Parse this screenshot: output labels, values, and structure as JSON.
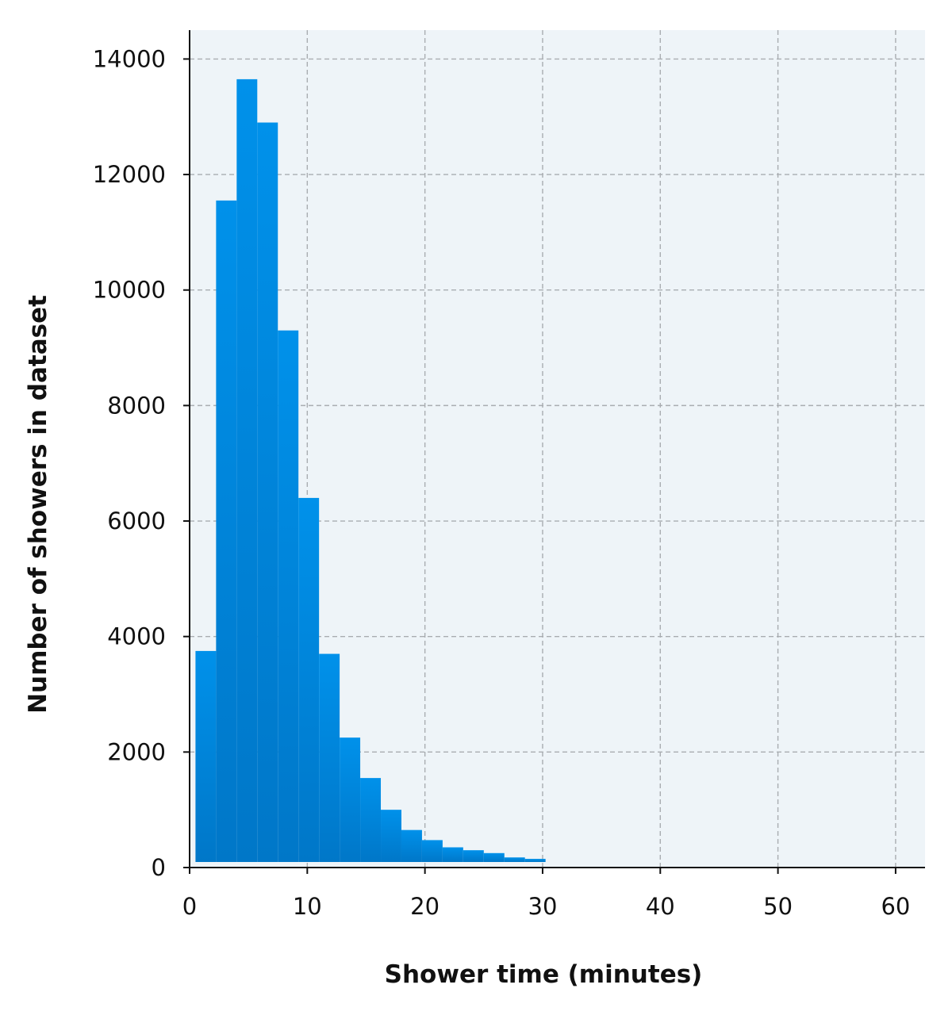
{
  "chart_data": {
    "type": "bar",
    "subtype": "histogram",
    "xlabel": "Shower time (minutes)",
    "ylabel": "Number of showers in dataset",
    "xlim": [
      0,
      62.5
    ],
    "ylim": [
      0,
      14500
    ],
    "xticks": [
      0,
      10,
      20,
      30,
      40,
      50,
      60
    ],
    "yticks": [
      0,
      2000,
      4000,
      6000,
      8000,
      10000,
      12000,
      14000
    ],
    "grid": true,
    "bins": [
      {
        "x0": 0.5,
        "x1": 2.25,
        "value": 3750
      },
      {
        "x0": 2.25,
        "x1": 4.0,
        "value": 11550
      },
      {
        "x0": 4.0,
        "x1": 5.75,
        "value": 13650
      },
      {
        "x0": 5.75,
        "x1": 7.5,
        "value": 12900
      },
      {
        "x0": 7.5,
        "x1": 9.25,
        "value": 9300
      },
      {
        "x0": 9.25,
        "x1": 11.0,
        "value": 6400
      },
      {
        "x0": 11.0,
        "x1": 12.75,
        "value": 3700
      },
      {
        "x0": 12.75,
        "x1": 14.5,
        "value": 2250
      },
      {
        "x0": 14.5,
        "x1": 16.25,
        "value": 1550
      },
      {
        "x0": 16.25,
        "x1": 18.0,
        "value": 1000
      },
      {
        "x0": 18.0,
        "x1": 19.75,
        "value": 650
      },
      {
        "x0": 19.75,
        "x1": 21.5,
        "value": 475
      },
      {
        "x0": 21.5,
        "x1": 23.25,
        "value": 350
      },
      {
        "x0": 23.25,
        "x1": 25.0,
        "value": 300
      },
      {
        "x0": 25.0,
        "x1": 26.75,
        "value": 250
      },
      {
        "x0": 26.75,
        "x1": 28.5,
        "value": 175
      },
      {
        "x0": 28.5,
        "x1": 30.25,
        "value": 150
      }
    ],
    "colors": {
      "plot_background": "#eef4f8",
      "bar_top": "#0091ea",
      "bar_bottom": "#0077c8",
      "grid": "#a9adb1",
      "axis": "#111111"
    }
  }
}
